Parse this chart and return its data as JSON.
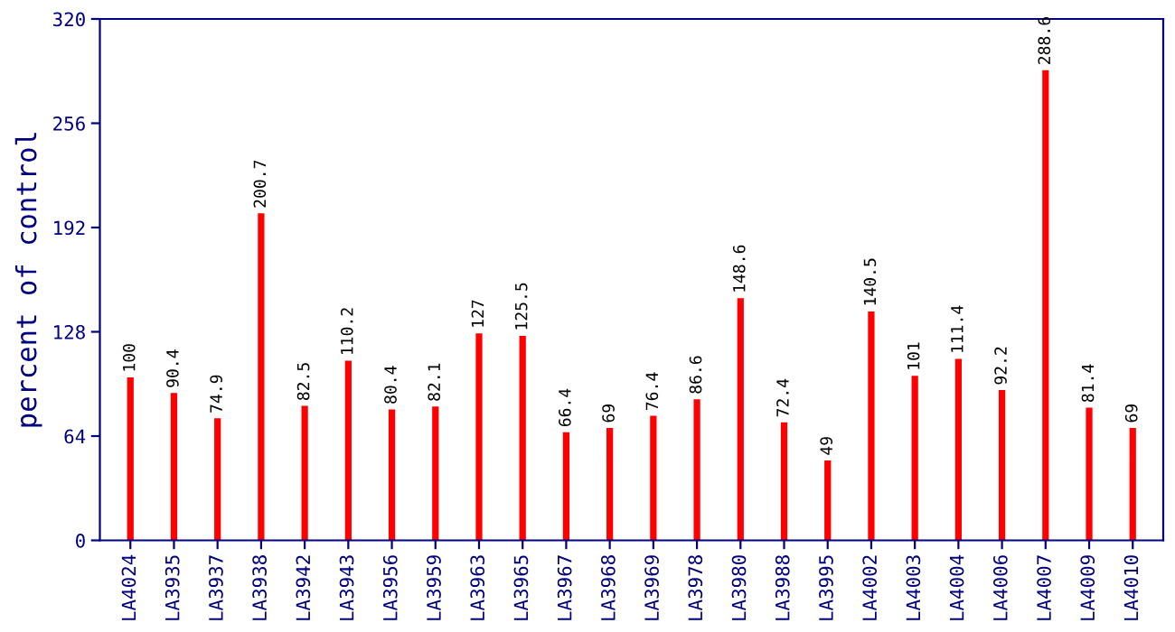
{
  "chart_data": {
    "type": "bar",
    "ylabel": "percent of control",
    "categories": [
      "LA4024",
      "LA3935",
      "LA3937",
      "LA3938",
      "LA3942",
      "LA3943",
      "LA3956",
      "LA3959",
      "LA3963",
      "LA3965",
      "LA3967",
      "LA3968",
      "LA3969",
      "LA3978",
      "LA3980",
      "LA3988",
      "LA3995",
      "LA4002",
      "LA4003",
      "LA4004",
      "LA4006",
      "LA4007",
      "LA4009",
      "LA4010"
    ],
    "values": [
      100,
      90.4,
      74.9,
      200.7,
      82.5,
      110.2,
      80.4,
      82.1,
      127,
      125.5,
      66.4,
      69,
      76.4,
      86.6,
      148.6,
      72.4,
      49,
      140.5,
      101,
      111.4,
      92.2,
      288.6,
      81.4,
      69
    ],
    "color": "#ff0000",
    "ylim": [
      0,
      320
    ],
    "yticks": [
      0,
      64,
      128,
      192,
      256,
      320
    ],
    "grid": false,
    "data_labels": true
  }
}
